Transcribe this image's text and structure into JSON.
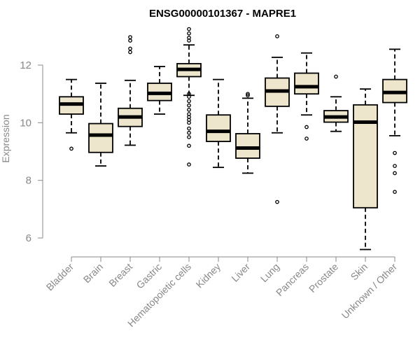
{
  "chart_data": {
    "type": "boxplot",
    "title": "ENSG00000101367 - MAPRE1",
    "xlabel": "",
    "ylabel": "Expression",
    "ylim": [
      5.4,
      13.4
    ],
    "yticks": [
      6,
      8,
      10,
      12
    ],
    "colors": {
      "box_fill": "#ede6cd",
      "box_stroke": "#000000",
      "axis": "#888888"
    },
    "categories": [
      "Bladder",
      "Brain",
      "Breast",
      "Gastric",
      "Hematopoietic cells",
      "Kidney",
      "Liver",
      "Lung",
      "Pancreas",
      "Prostate",
      "Skin",
      "Unknown / Other"
    ],
    "boxes": [
      {
        "category": "Bladder",
        "whisker_low": 9.65,
        "q1": 10.3,
        "median": 10.65,
        "q3": 10.9,
        "whisker_high": 11.5,
        "outliers": [
          9.1
        ]
      },
      {
        "category": "Brain",
        "whisker_low": 8.5,
        "q1": 8.97,
        "median": 9.57,
        "q3": 9.97,
        "whisker_high": 11.37,
        "outliers": []
      },
      {
        "category": "Breast",
        "whisker_low": 9.22,
        "q1": 9.87,
        "median": 10.2,
        "q3": 10.5,
        "whisker_high": 11.47,
        "outliers": [
          12.45,
          12.57,
          12.85,
          12.97
        ]
      },
      {
        "category": "Gastric",
        "whisker_low": 10.3,
        "q1": 10.77,
        "median": 11.02,
        "q3": 11.37,
        "whisker_high": 11.95,
        "outliers": []
      },
      {
        "category": "Hematopoietic cells",
        "whisker_low": 10.95,
        "q1": 11.6,
        "median": 11.85,
        "q3": 12.05,
        "whisker_high": 12.7,
        "outliers": [
          8.55,
          9.2,
          9.5,
          9.65,
          9.8,
          10.0,
          10.1,
          10.2,
          10.3,
          10.45,
          10.6,
          10.75,
          10.9,
          11.0,
          12.85,
          12.95,
          13.1,
          13.25
        ]
      },
      {
        "category": "Kidney",
        "whisker_low": 8.45,
        "q1": 9.35,
        "median": 9.7,
        "q3": 10.27,
        "whisker_high": 11.5,
        "outliers": []
      },
      {
        "category": "Liver",
        "whisker_low": 8.25,
        "q1": 8.77,
        "median": 9.12,
        "q3": 9.62,
        "whisker_high": 10.85,
        "outliers": [
          10.95,
          11.0
        ]
      },
      {
        "category": "Lung",
        "whisker_low": 9.65,
        "q1": 10.57,
        "median": 11.1,
        "q3": 11.55,
        "whisker_high": 12.27,
        "outliers": [
          7.25,
          13.0
        ]
      },
      {
        "category": "Pancreas",
        "whisker_low": 10.27,
        "q1": 11.0,
        "median": 11.25,
        "q3": 11.72,
        "whisker_high": 12.42,
        "outliers": [
          9.45,
          9.85
        ]
      },
      {
        "category": "Prostate",
        "whisker_low": 9.7,
        "q1": 10.02,
        "median": 10.2,
        "q3": 10.42,
        "whisker_high": 10.9,
        "outliers": [
          11.6
        ]
      },
      {
        "category": "Skin",
        "whisker_low": 5.6,
        "q1": 7.05,
        "median": 10.02,
        "q3": 10.62,
        "whisker_high": 11.17,
        "outliers": []
      },
      {
        "category": "Unknown / Other",
        "whisker_low": 9.55,
        "q1": 10.7,
        "median": 11.05,
        "q3": 11.5,
        "whisker_high": 12.55,
        "outliers": [
          7.6,
          8.25,
          8.5,
          8.95
        ]
      }
    ]
  }
}
